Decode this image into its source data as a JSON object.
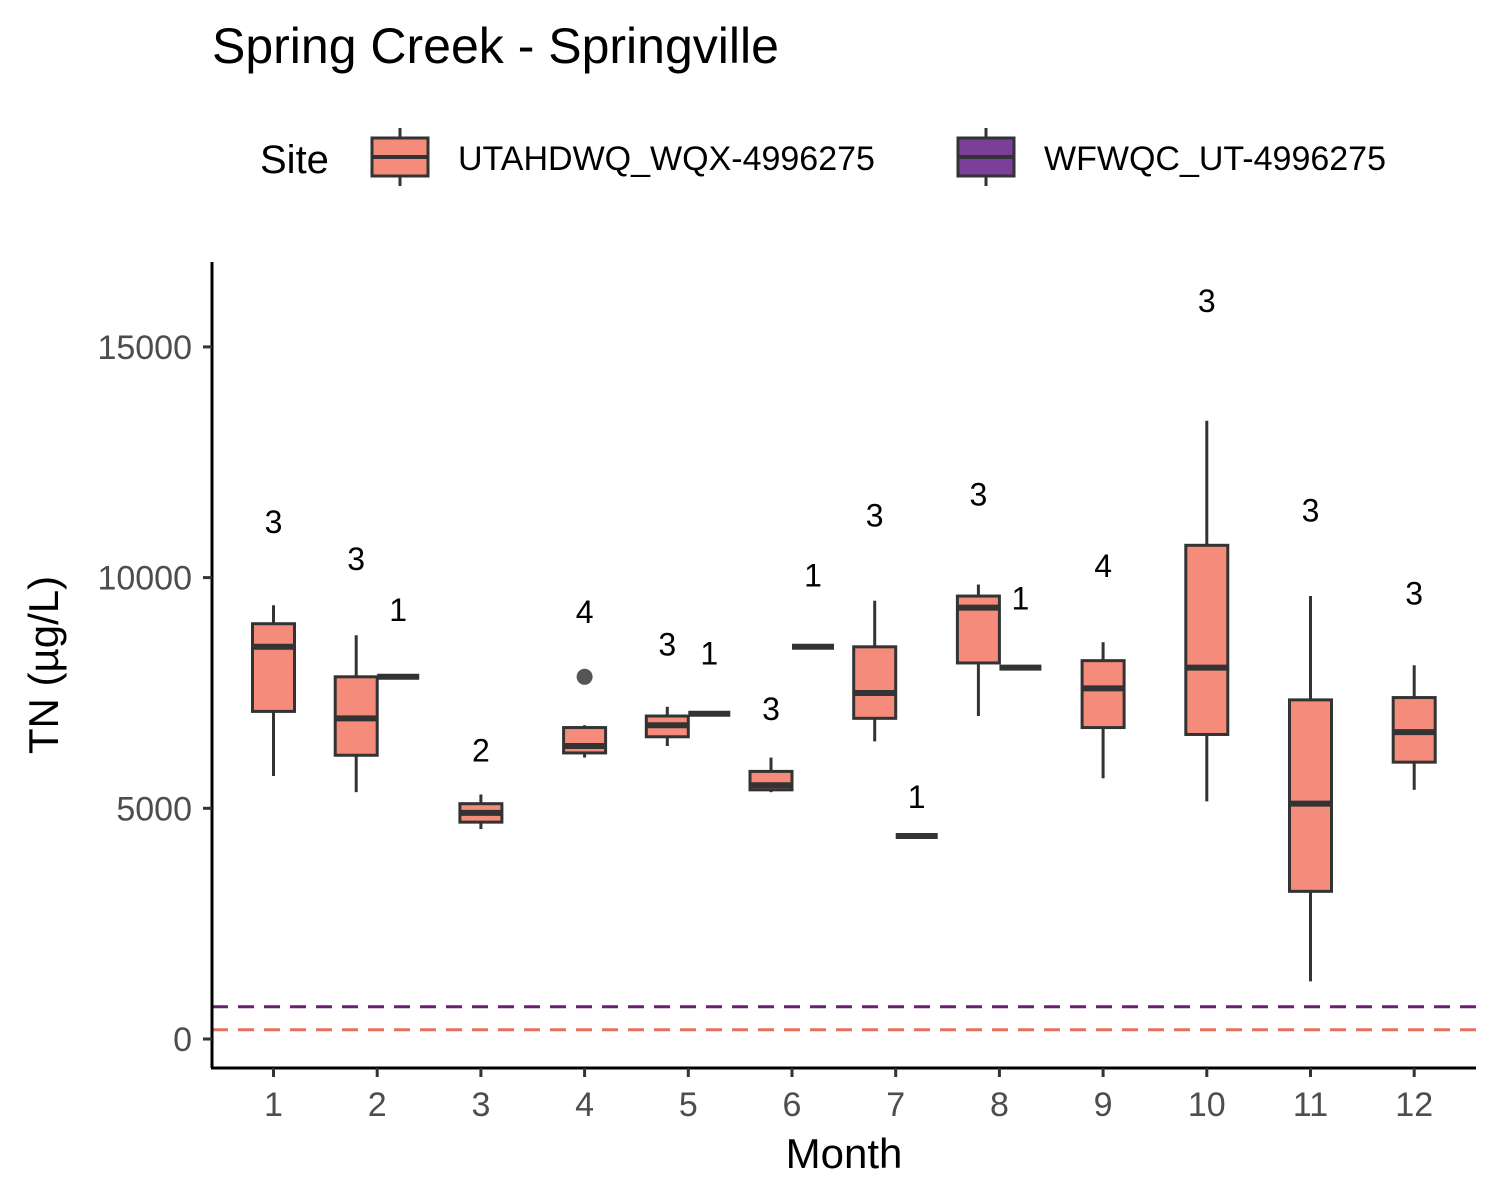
{
  "chart_data": {
    "type": "boxplot",
    "title": "Spring Creek - Springville",
    "xlabel": "Month",
    "ylabel": "TN (µg/L)",
    "ylim": [
      -600,
      16800
    ],
    "yticks": [
      0,
      5000,
      10000,
      15000
    ],
    "categories": [
      "1",
      "2",
      "3",
      "4",
      "5",
      "6",
      "7",
      "8",
      "9",
      "10",
      "11",
      "12"
    ],
    "legend": {
      "title": "Site",
      "position": "top",
      "entries": [
        {
          "name": "UTAHDWQ_WQX-4996275",
          "color": "#f48b7b"
        },
        {
          "name": "WFWQC_UT-4996275",
          "color": "#7b3f99"
        }
      ]
    },
    "reference_lines": [
      {
        "site": "WFWQC_UT-4996275",
        "y": 700,
        "color": "#6a1f70",
        "style": "dashed"
      },
      {
        "site": "UTAHDWQ_WQX-4996275",
        "y": 200,
        "color": "#e8705e",
        "style": "dashed"
      }
    ],
    "series": [
      {
        "name": "UTAHDWQ_WQX-4996275",
        "color": "#f48b7b",
        "boxes": [
          {
            "month": "1",
            "whisker_low": 5700,
            "q1": 7100,
            "median": 8500,
            "q3": 9000,
            "whisker_high": 9400,
            "outliers": [],
            "n": 3,
            "n_label_y": 11200
          },
          {
            "month": "2",
            "whisker_low": 5350,
            "q1": 6150,
            "median": 6950,
            "q3": 7850,
            "whisker_high": 8750,
            "outliers": [],
            "n": 3,
            "n_label_y": 10400
          },
          {
            "month": "3",
            "whisker_low": 4550,
            "q1": 4700,
            "median": 4900,
            "q3": 5100,
            "whisker_high": 5300,
            "outliers": [],
            "n": 2,
            "n_label_y": 6250
          },
          {
            "month": "4",
            "whisker_low": 6100,
            "q1": 6200,
            "median": 6350,
            "q3": 6750,
            "whisker_high": 6800,
            "outliers": [
              7850
            ],
            "n": 4,
            "n_label_y": 9250
          },
          {
            "month": "5",
            "whisker_low": 6350,
            "q1": 6550,
            "median": 6800,
            "q3": 7000,
            "whisker_high": 7200,
            "outliers": [],
            "n": 3,
            "n_label_y": 8550
          },
          {
            "month": "6",
            "whisker_low": 5350,
            "q1": 5400,
            "median": 5500,
            "q3": 5800,
            "whisker_high": 6100,
            "outliers": [],
            "n": 3,
            "n_label_y": 7150
          },
          {
            "month": "7",
            "whisker_low": 6450,
            "q1": 6950,
            "median": 7500,
            "q3": 8500,
            "whisker_high": 9500,
            "outliers": [],
            "n": 3,
            "n_label_y": 11350
          },
          {
            "month": "8",
            "whisker_low": 7000,
            "q1": 8150,
            "median": 9350,
            "q3": 9600,
            "whisker_high": 9850,
            "outliers": [],
            "n": 3,
            "n_label_y": 11800
          },
          {
            "month": "9",
            "whisker_low": 5650,
            "q1": 6750,
            "median": 7600,
            "q3": 8200,
            "whisker_high": 8600,
            "outliers": [],
            "n": 4,
            "n_label_y": 10250
          },
          {
            "month": "10",
            "whisker_low": 5150,
            "q1": 6600,
            "median": 8050,
            "q3": 10700,
            "whisker_high": 13400,
            "outliers": [],
            "n": 3,
            "n_label_y": 16000
          },
          {
            "month": "11",
            "whisker_low": 1250,
            "q1": 3200,
            "median": 5100,
            "q3": 7350,
            "whisker_high": 9600,
            "outliers": [],
            "n": 3,
            "n_label_y": 11450
          },
          {
            "month": "12",
            "whisker_low": 5400,
            "q1": 6000,
            "median": 6650,
            "q3": 7400,
            "whisker_high": 8100,
            "outliers": [],
            "n": 3,
            "n_label_y": 9650
          }
        ]
      },
      {
        "name": "WFWQC_UT-4996275",
        "color": "#7b3f99",
        "boxes": [
          {
            "month": "2",
            "value": 7850,
            "n": 1,
            "n_label_y": 9300
          },
          {
            "month": "5",
            "value": 7050,
            "n": 1,
            "n_label_y": 8350
          },
          {
            "month": "6",
            "value": 8500,
            "n": 1,
            "n_label_y": 10050
          },
          {
            "month": "7",
            "value": 4400,
            "n": 1,
            "n_label_y": 5250
          },
          {
            "month": "8",
            "value": 8050,
            "n": 1,
            "n_label_y": 9550
          }
        ]
      }
    ]
  }
}
